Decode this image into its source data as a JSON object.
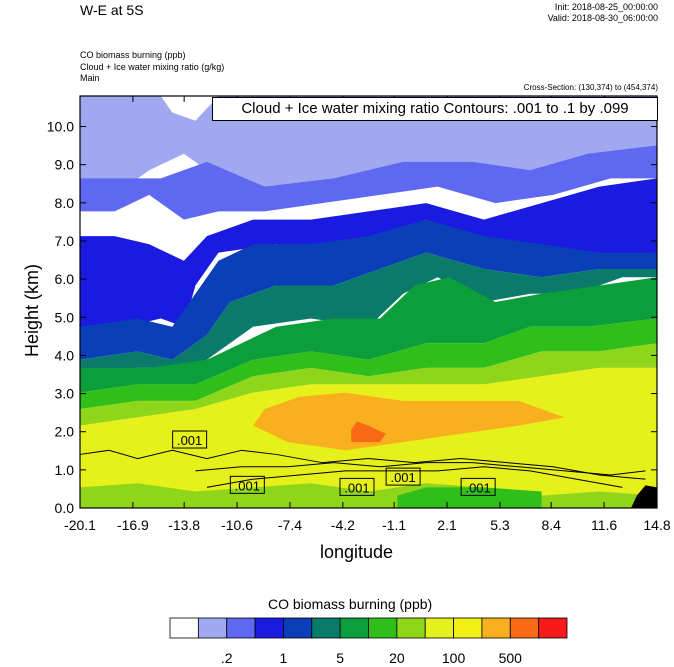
{
  "header": {
    "title": "W-E at 5S",
    "init": "Init: 2018-08-25_00:00:00",
    "valid": "Valid: 2018-08-30_06:00:00",
    "fields": [
      "CO biomass burning   (ppb)",
      "Cloud + Ice water mixing ratio   (g/kg)",
      "Main"
    ],
    "cross_section": "Cross-Section: (130,374) to (454,374)",
    "contour_info": "Cloud + Ice water mixing ratio Contours: .001 to .1 by .099"
  },
  "chart_data": {
    "type": "heatmap",
    "xlabel": "longitude",
    "ylabel": "Height (km)",
    "x_ticks": [
      "-20.1",
      "-16.9",
      "-13.8",
      "-10.6",
      "-7.4",
      "-4.2",
      "-1.1",
      "2.1",
      "5.3",
      "8.4",
      "11.6",
      "14.8"
    ],
    "y_ticks": [
      "0.0",
      "1.0",
      "2.0",
      "3.0",
      "4.0",
      "5.0",
      "6.0",
      "7.0",
      "8.0",
      "9.0",
      "10.0"
    ],
    "xlim": [
      -20.1,
      14.8
    ],
    "ylim": [
      0.0,
      10.8
    ],
    "contour_labels": [
      ".001",
      ".001",
      ".001",
      ".001",
      ".001"
    ],
    "colorbar": {
      "title": "CO biomass burning  (ppb)",
      "labels": [
        ".2",
        "1",
        "5",
        "20",
        "100",
        "500"
      ],
      "colors": [
        "#ffffff",
        "#a0a8f0",
        "#5f68f0",
        "#1a1ae0",
        "#0a3fb8",
        "#0a7a6a",
        "#0b9e3a",
        "#2fbe1a",
        "#8fd61a",
        "#e6f01a",
        "#f0f016",
        "#f8b01e",
        "#f86a16",
        "#f81a1a"
      ]
    }
  }
}
